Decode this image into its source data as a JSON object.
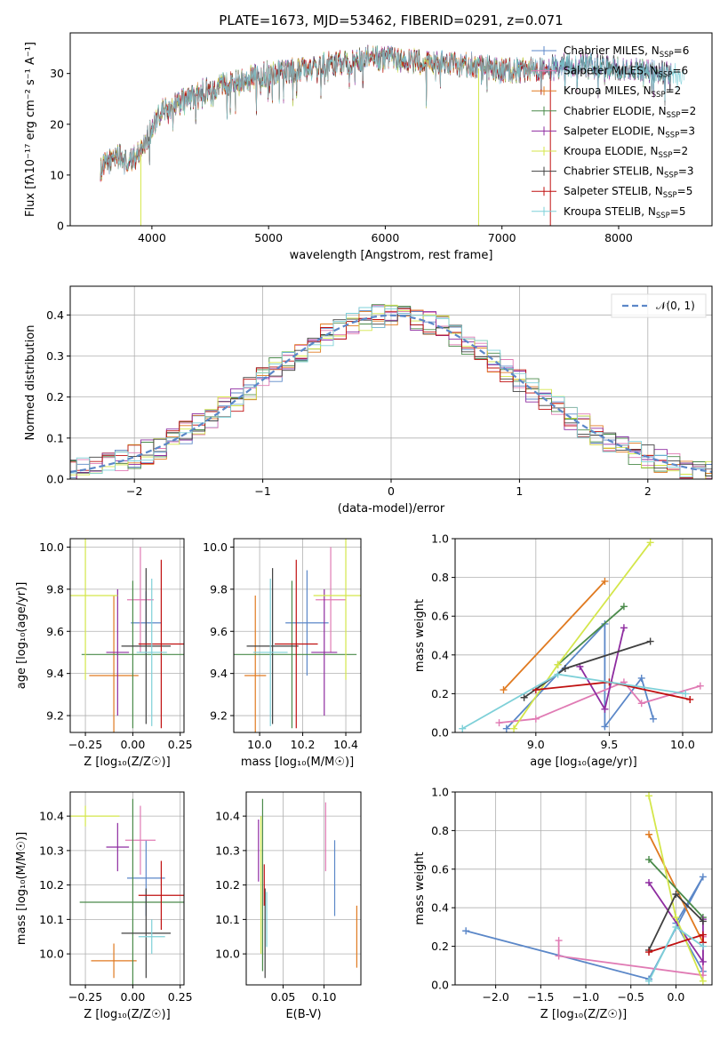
{
  "figure": {
    "title": "PLATE=1673, MJD=53462, FIBERID=0291, z=0.071"
  },
  "chart_data": [
    {
      "id": "spectrum",
      "type": "line",
      "title": "PLATE=1673, MJD=53462, FIBERID=0291, z=0.071",
      "xlabel": "wavelength [Angstrom, rest frame]",
      "ylabel": "Flux [fλ10⁻¹⁷ erg cm⁻² s⁻¹ A⁻¹]",
      "xlim": [
        3300,
        8800
      ],
      "ylim": [
        0,
        38
      ],
      "xticks": [
        4000,
        5000,
        6000,
        7000,
        8000
      ],
      "yticks": [
        0,
        10,
        20,
        30
      ],
      "grid": false,
      "legend_position": "top-right",
      "spectrum_anchor": {
        "x": [
          3560,
          3600,
          3700,
          3800,
          3900,
          4000,
          4100,
          4200,
          4300,
          4400,
          4500,
          4700,
          5000,
          5300,
          5600,
          5900,
          6200,
          6500,
          6800,
          7000,
          7200,
          7400,
          7600,
          7800,
          8000,
          8200,
          8400,
          8550
        ],
        "y": [
          11,
          12,
          14,
          12,
          15,
          19,
          23,
          24,
          25,
          26,
          27,
          28.5,
          30,
          31,
          32,
          33,
          32.5,
          32,
          31.5,
          30.5,
          30.5,
          31,
          31.5,
          31.5,
          31,
          30.5,
          30,
          29.5
        ]
      },
      "series": [
        {
          "name": "Chabrier MILES, N_SSP=6",
          "label_main": "Chabrier MILES, N",
          "label_sub": "SSP",
          "label_tail": "=6",
          "color": "#5b87c8"
        },
        {
          "name": "Salpeter MILES, N_SSP=6",
          "label_main": "Salpeter MILES, N",
          "label_sub": "SSP",
          "label_tail": "=6",
          "color": "#e07bb4"
        },
        {
          "name": "Kroupa MILES, N_SSP=2",
          "label_main": "Kroupa MILES, N",
          "label_sub": "SSP",
          "label_tail": "=2",
          "color": "#e07a20"
        },
        {
          "name": "Chabrier ELODIE, N_SSP=2",
          "label_main": "Chabrier ELODIE, N",
          "label_sub": "SSP",
          "label_tail": "=2",
          "color": "#4a8a4a"
        },
        {
          "name": "Salpeter ELODIE, N_SSP=3",
          "label_main": "Salpeter ELODIE, N",
          "label_sub": "SSP",
          "label_tail": "=3",
          "color": "#8e2ca0"
        },
        {
          "name": "Kroupa ELODIE, N_SSP=2",
          "label_main": "Kroupa ELODIE, N",
          "label_sub": "SSP",
          "label_tail": "=2",
          "color": "#d4e64a"
        },
        {
          "name": "Chabrier STELIB, N_SSP=3",
          "label_main": "Chabrier STELIB, N",
          "label_sub": "SSP",
          "label_tail": "=3",
          "color": "#404040"
        },
        {
          "name": "Salpeter STELIB, N_SSP=5",
          "label_main": "Salpeter STELIB, N",
          "label_sub": "SSP",
          "label_tail": "=5",
          "color": "#c01010"
        },
        {
          "name": "Kroupa STELIB, N_SSP=5",
          "label_main": "Kroupa STELIB, N",
          "label_sub": "SSP",
          "label_tail": "=5",
          "color": "#7ed0d8"
        }
      ]
    },
    {
      "id": "residuals",
      "type": "bar",
      "xlabel": "(data-model)/error",
      "ylabel": "Normed distribution",
      "xlim": [
        -2.5,
        2.5
      ],
      "ylim": [
        0,
        0.47
      ],
      "xticks": [
        -2,
        -1,
        0,
        1,
        2
      ],
      "yticks": [
        0.0,
        0.1,
        0.2,
        0.3,
        0.4
      ],
      "grid": true,
      "legend": {
        "label": "𝒩(0, 1)",
        "color": "#5b87c8",
        "position": "top-right"
      },
      "bin_width": 0.1,
      "gaussian": {
        "mean": 0,
        "sigma": 1
      }
    },
    {
      "id": "age_vs_Z",
      "type": "scatter",
      "xlabel": "Z [log₁₀(Z/Z☉)]",
      "ylabel": "age  [log₁₀(age/yr)]",
      "xlim": [
        -0.33,
        0.27
      ],
      "ylim": [
        9.12,
        10.04
      ],
      "xticks": [
        -0.25,
        0.0,
        0.25
      ],
      "yticks": [
        9.2,
        9.4,
        9.6,
        9.8,
        10.0
      ],
      "grid": true,
      "points": [
        {
          "color": "#5b87c8",
          "x": 0.07,
          "y": 9.64,
          "xerr": 0.08,
          "yerr": 0.15
        },
        {
          "color": "#e07bb4",
          "x": 0.04,
          "y": 9.75,
          "xerr": 0.07,
          "yerr": 0.25
        },
        {
          "color": "#e07a20",
          "x": -0.1,
          "y": 9.39,
          "xerr": 0.13,
          "yerr": 0.38
        },
        {
          "color": "#4a8a4a",
          "x": 0.0,
          "y": 9.49,
          "xerr": 0.27,
          "yerr": 0.35
        },
        {
          "color": "#8e2ca0",
          "x": -0.08,
          "y": 9.5,
          "xerr": 0.06,
          "yerr": 0.3
        },
        {
          "color": "#d4e64a",
          "x": -0.25,
          "y": 9.77,
          "xerr": 0.17,
          "yerr": 0.4
        },
        {
          "color": "#404040",
          "x": 0.07,
          "y": 9.53,
          "xerr": 0.13,
          "yerr": 0.37
        },
        {
          "color": "#c01010",
          "x": 0.15,
          "y": 9.54,
          "xerr": 0.12,
          "yerr": 0.4
        },
        {
          "color": "#7ed0d8",
          "x": 0.1,
          "y": 9.5,
          "xerr": 0.08,
          "yerr": 0.35
        }
      ]
    },
    {
      "id": "age_vs_mass",
      "type": "scatter",
      "xlabel": "mass [log₁₀(M/M☉)]",
      "xlim": [
        9.88,
        10.47
      ],
      "ylim": [
        9.12,
        10.04
      ],
      "xticks": [
        10.0,
        10.2,
        10.4
      ],
      "yticks": [
        9.2,
        9.4,
        9.6,
        9.8,
        10.0
      ],
      "grid": true,
      "points": [
        {
          "color": "#5b87c8",
          "x": 10.22,
          "y": 9.64,
          "xerr": 0.1,
          "yerr": 0.25
        },
        {
          "color": "#e07bb4",
          "x": 10.33,
          "y": 9.75,
          "xerr": 0.07,
          "yerr": 0.25
        },
        {
          "color": "#e07a20",
          "x": 9.98,
          "y": 9.39,
          "xerr": 0.05,
          "yerr": 0.38
        },
        {
          "color": "#4a8a4a",
          "x": 10.15,
          "y": 9.49,
          "xerr": 0.3,
          "yerr": 0.35
        },
        {
          "color": "#8e2ca0",
          "x": 10.3,
          "y": 9.5,
          "xerr": 0.06,
          "yerr": 0.3
        },
        {
          "color": "#d4e64a",
          "x": 10.4,
          "y": 9.77,
          "xerr": 0.15,
          "yerr": 0.4
        },
        {
          "color": "#404040",
          "x": 10.06,
          "y": 9.53,
          "xerr": 0.12,
          "yerr": 0.37
        },
        {
          "color": "#c01010",
          "x": 10.17,
          "y": 9.54,
          "xerr": 0.1,
          "yerr": 0.4
        },
        {
          "color": "#7ed0d8",
          "x": 10.05,
          "y": 9.5,
          "xerr": 0.08,
          "yerr": 0.35
        }
      ]
    },
    {
      "id": "weight_vs_age",
      "type": "line",
      "xlabel": "age  [log₁₀(age/yr)]",
      "ylabel": "mass weight",
      "xlim": [
        8.45,
        10.2
      ],
      "ylim": [
        0,
        1.0
      ],
      "xticks": [
        9.0,
        9.5,
        10.0
      ],
      "yticks": [
        0.0,
        0.2,
        0.4,
        0.6,
        0.8,
        1.0
      ],
      "grid": true,
      "series": [
        {
          "color": "#5b87c8",
          "x": [
            8.8,
            9.47,
            9.47,
            9.72,
            9.8
          ],
          "y": [
            0.02,
            0.56,
            0.03,
            0.28,
            0.07
          ]
        },
        {
          "color": "#e07bb4",
          "x": [
            8.75,
            9.0,
            9.6,
            9.72,
            10.12
          ],
          "y": [
            0.05,
            0.07,
            0.26,
            0.15,
            0.24
          ]
        },
        {
          "color": "#e07a20",
          "x": [
            8.78,
            9.47
          ],
          "y": [
            0.22,
            0.78
          ]
        },
        {
          "color": "#4a8a4a",
          "x": [
            9.15,
            9.6
          ],
          "y": [
            0.35,
            0.65
          ]
        },
        {
          "color": "#8e2ca0",
          "x": [
            9.3,
            9.47,
            9.6
          ],
          "y": [
            0.34,
            0.12,
            0.54
          ]
        },
        {
          "color": "#d4e64a",
          "x": [
            8.85,
            9.15,
            9.78
          ],
          "y": [
            0.02,
            0.35,
            0.98
          ]
        },
        {
          "color": "#404040",
          "x": [
            8.92,
            9.2,
            9.78
          ],
          "y": [
            0.18,
            0.33,
            0.47
          ]
        },
        {
          "color": "#c01010",
          "x": [
            9.0,
            9.5,
            10.05
          ],
          "y": [
            0.22,
            0.26,
            0.17
          ]
        },
        {
          "color": "#7ed0d8",
          "x": [
            8.5,
            9.15,
            10.02
          ],
          "y": [
            0.02,
            0.3,
            0.2
          ]
        }
      ]
    },
    {
      "id": "mass_vs_Z",
      "type": "scatter",
      "xlabel": "Z [log₁₀(Z/Z☉)]",
      "ylabel": "mass [log₁₀(M/M☉)]",
      "xlim": [
        -0.33,
        0.27
      ],
      "ylim": [
        9.91,
        10.47
      ],
      "xticks": [
        -0.25,
        0.0,
        0.25
      ],
      "yticks": [
        10.0,
        10.1,
        10.2,
        10.3,
        10.4
      ],
      "grid": true,
      "points": [
        {
          "color": "#5b87c8",
          "x": 0.07,
          "y": 10.22,
          "xerr": 0.1,
          "yerr": 0.11
        },
        {
          "color": "#e07bb4",
          "x": 0.04,
          "y": 10.33,
          "xerr": 0.08,
          "yerr": 0.1
        },
        {
          "color": "#e07a20",
          "x": -0.1,
          "y": 9.98,
          "xerr": 0.12,
          "yerr": 0.05
        },
        {
          "color": "#4a8a4a",
          "x": 0.0,
          "y": 10.15,
          "xerr": 0.28,
          "yerr": 0.3
        },
        {
          "color": "#8e2ca0",
          "x": -0.08,
          "y": 10.31,
          "xerr": 0.06,
          "yerr": 0.07
        },
        {
          "color": "#d4e64a",
          "x": -0.25,
          "y": 10.4,
          "xerr": 0.18,
          "yerr": 0.03
        },
        {
          "color": "#404040",
          "x": 0.07,
          "y": 10.06,
          "xerr": 0.13,
          "yerr": 0.13
        },
        {
          "color": "#c01010",
          "x": 0.15,
          "y": 10.17,
          "xerr": 0.12,
          "yerr": 0.1
        },
        {
          "color": "#7ed0d8",
          "x": 0.1,
          "y": 10.05,
          "xerr": 0.07,
          "yerr": 0.05
        }
      ]
    },
    {
      "id": "mass_vs_ebv",
      "type": "scatter",
      "xlabel": "E(B-V)",
      "xlim": [
        0.005,
        0.145
      ],
      "ylim": [
        9.91,
        10.47
      ],
      "xticks": [
        0.05,
        0.1
      ],
      "yticks": [
        10.0,
        10.1,
        10.2,
        10.3,
        10.4
      ],
      "grid": true,
      "points": [
        {
          "color": "#5b87c8",
          "x": 0.113,
          "y": 10.22,
          "yerr": 0.11
        },
        {
          "color": "#e07bb4",
          "x": 0.102,
          "y": 10.34,
          "yerr": 0.1
        },
        {
          "color": "#e07a20",
          "x": 0.14,
          "y": 10.05,
          "yerr": 0.09
        },
        {
          "color": "#4a8a4a",
          "x": 0.025,
          "y": 10.2,
          "yerr": 0.25
        },
        {
          "color": "#8e2ca0",
          "x": 0.02,
          "y": 10.3,
          "yerr": 0.09
        },
        {
          "color": "#d4e64a",
          "x": 0.023,
          "y": 10.2,
          "yerr": 0.2
        },
        {
          "color": "#404040",
          "x": 0.028,
          "y": 10.06,
          "yerr": 0.13
        },
        {
          "color": "#c01010",
          "x": 0.027,
          "y": 10.2,
          "yerr": 0.06
        },
        {
          "color": "#7ed0d8",
          "x": 0.03,
          "y": 10.1,
          "yerr": 0.08
        }
      ]
    },
    {
      "id": "weight_vs_Z",
      "type": "line",
      "xlabel": "Z [log₁₀(Z/Z☉)]",
      "ylabel": "mass weight",
      "xlim": [
        -2.45,
        0.4
      ],
      "ylim": [
        0,
        1.0
      ],
      "xticks": [
        -2.0,
        -1.5,
        -1.0,
        -0.5,
        0.0
      ],
      "yticks": [
        0.0,
        0.2,
        0.4,
        0.6,
        0.8,
        1.0
      ],
      "grid": true,
      "series": [
        {
          "color": "#5b87c8",
          "x": [
            -2.33,
            -0.3,
            0.3,
            0.0,
            0.3
          ],
          "y": [
            0.28,
            0.03,
            0.56,
            0.32,
            0.07
          ]
        },
        {
          "color": "#e07bb4",
          "x": [
            -1.3,
            -1.3,
            0.3,
            0.3
          ],
          "y": [
            0.23,
            0.15,
            0.05,
            0.25
          ]
        },
        {
          "color": "#e07a20",
          "x": [
            -0.3,
            0.3
          ],
          "y": [
            0.78,
            0.22
          ]
        },
        {
          "color": "#4a8a4a",
          "x": [
            -0.3,
            0.3
          ],
          "y": [
            0.65,
            0.35
          ]
        },
        {
          "color": "#8e2ca0",
          "x": [
            -0.3,
            0.3,
            0.3
          ],
          "y": [
            0.53,
            0.12,
            0.34
          ]
        },
        {
          "color": "#d4e64a",
          "x": [
            -0.3,
            0.0,
            0.3
          ],
          "y": [
            0.98,
            0.35,
            0.02
          ]
        },
        {
          "color": "#404040",
          "x": [
            -0.3,
            0.0,
            0.3
          ],
          "y": [
            0.18,
            0.47,
            0.33
          ]
        },
        {
          "color": "#c01010",
          "x": [
            -0.3,
            0.3,
            0.3
          ],
          "y": [
            0.17,
            0.26,
            0.22
          ]
        },
        {
          "color": "#7ed0d8",
          "x": [
            -0.3,
            0.0,
            0.3
          ],
          "y": [
            0.02,
            0.3,
            0.2
          ]
        }
      ]
    }
  ]
}
